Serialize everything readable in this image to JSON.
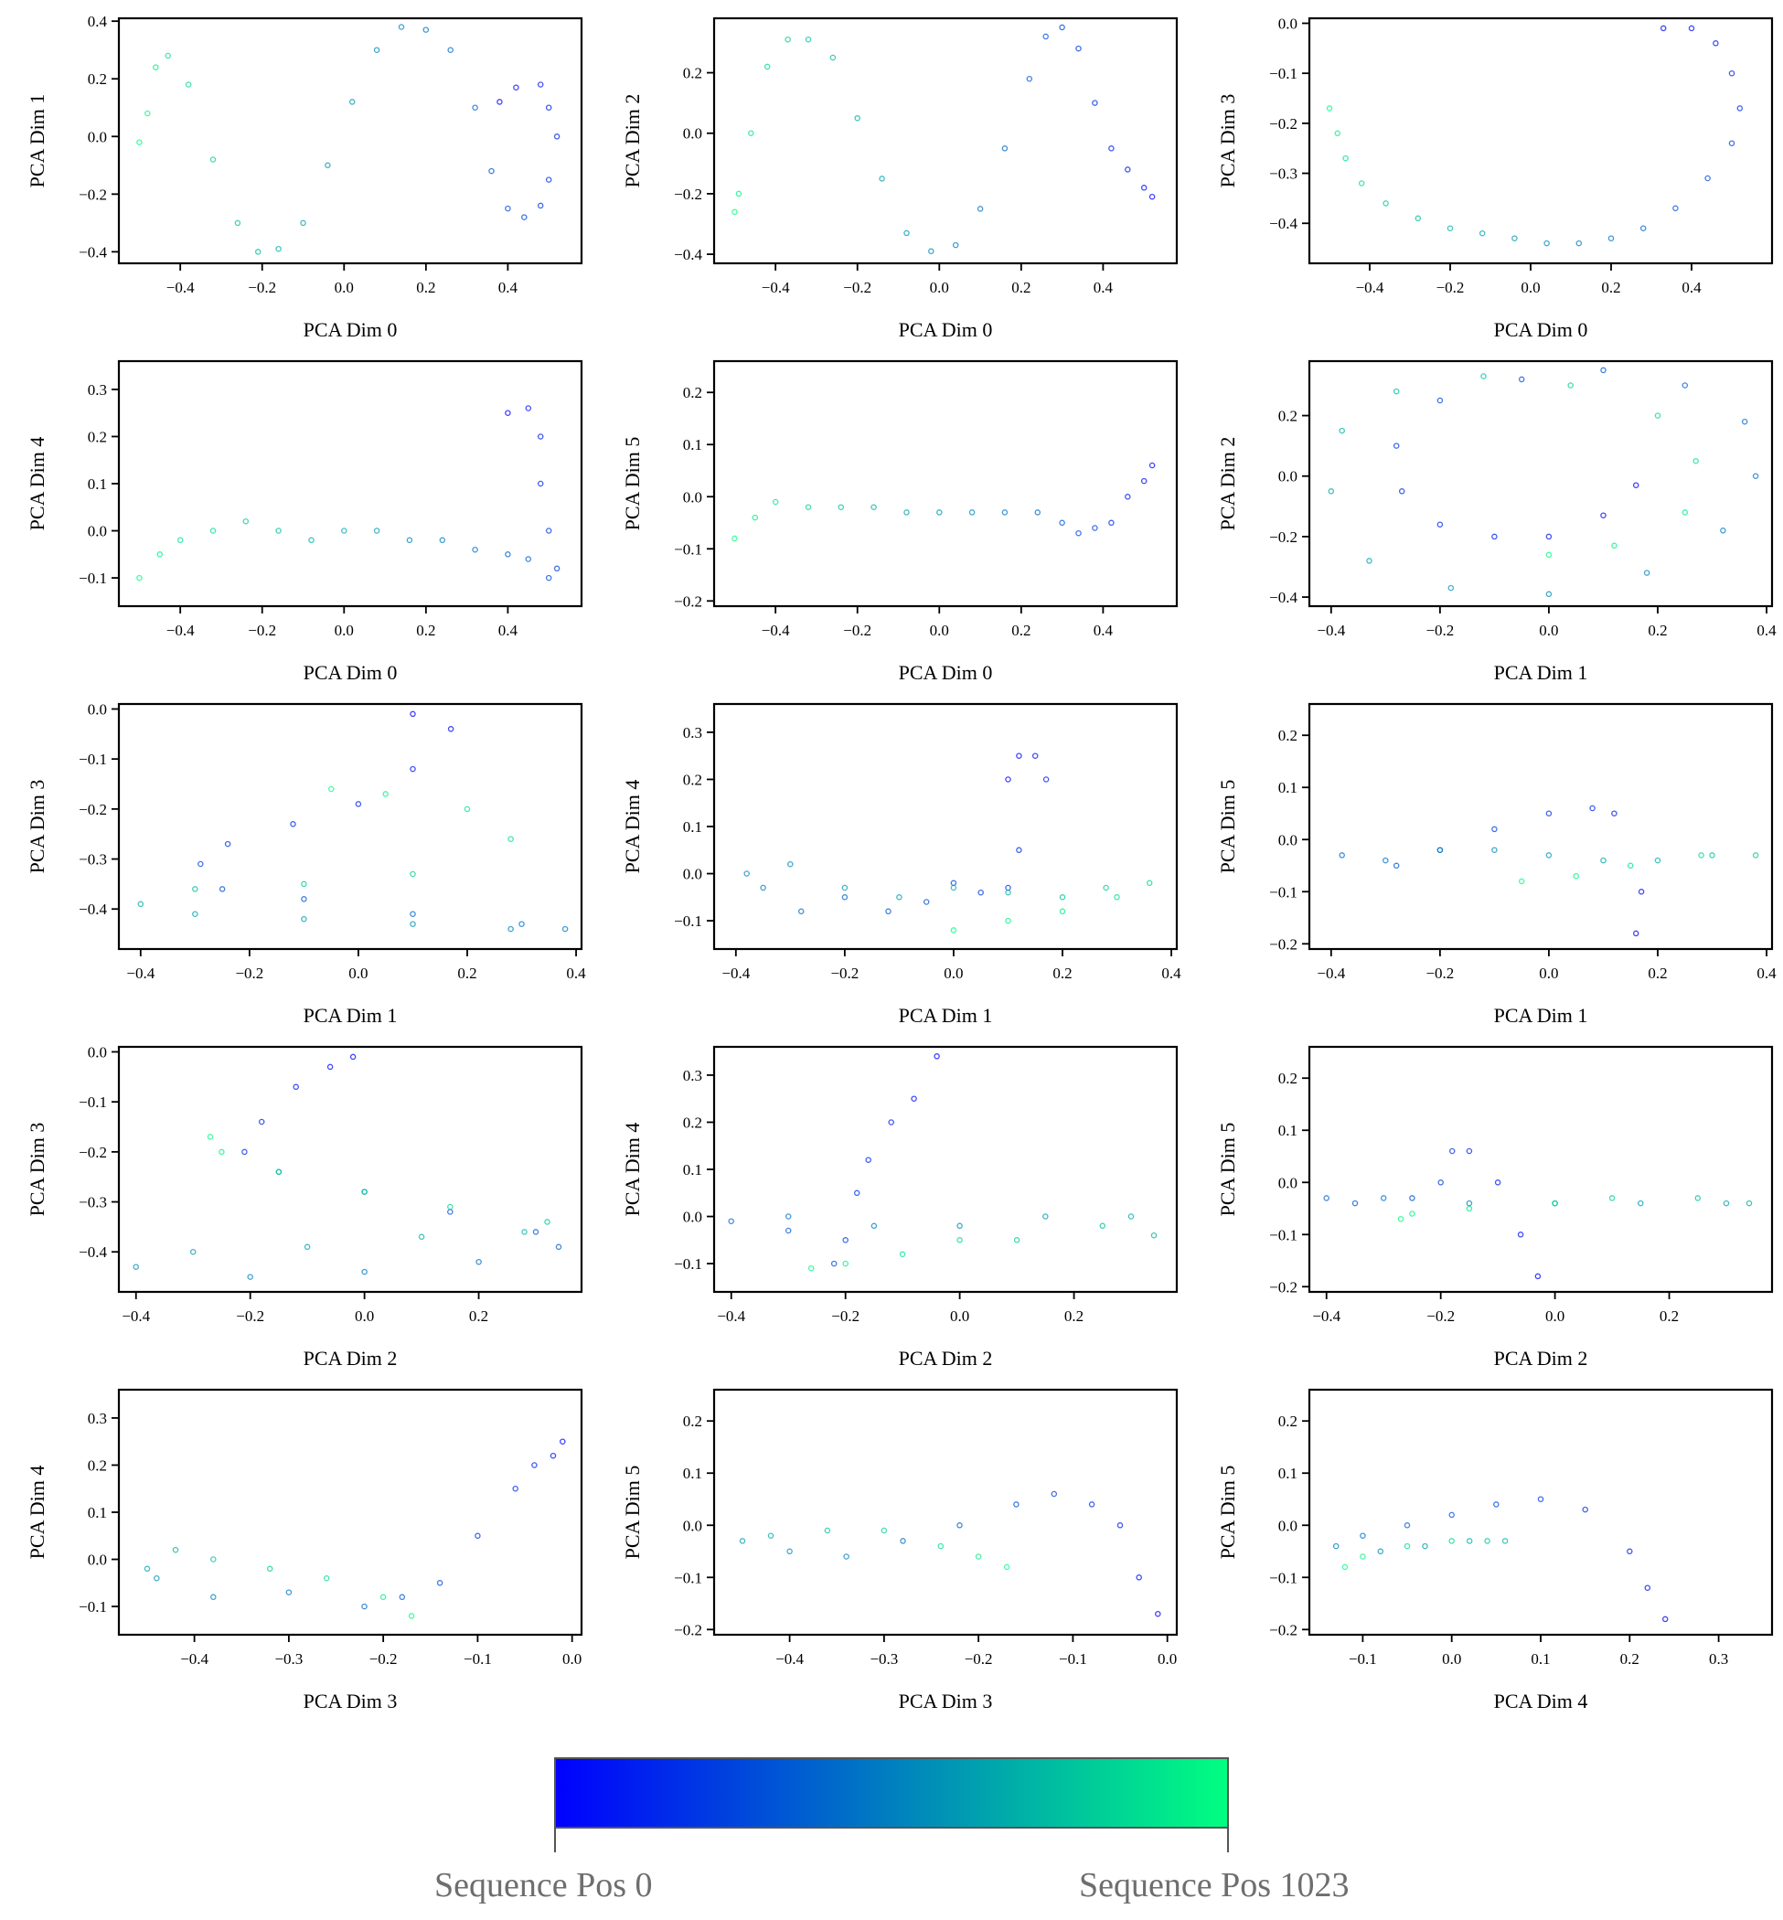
{
  "colorbar": {
    "start_color": "#0000ff",
    "end_color": "#00ff80",
    "left_label": "Sequence Pos 0",
    "right_label": "Sequence Pos 1023"
  },
  "chart_data": [
    {
      "type": "scatter",
      "xlabel": "PCA Dim 0",
      "ylabel": "PCA Dim 1",
      "xlim": [
        -0.55,
        0.58
      ],
      "ylim": [
        -0.44,
        0.41
      ],
      "xticks": [
        -0.4,
        -0.2,
        0.0,
        0.2,
        0.4
      ],
      "yticks": [
        -0.4,
        -0.2,
        0.0,
        0.2,
        0.4
      ],
      "x": [
        0.38,
        0.42,
        0.48,
        0.5,
        0.52,
        0.5,
        0.48,
        0.44,
        0.4,
        0.36,
        0.32,
        0.26,
        0.2,
        0.14,
        0.08,
        0.02,
        -0.04,
        -0.1,
        -0.16,
        -0.21,
        -0.26,
        -0.32,
        -0.38,
        -0.43,
        -0.46,
        -0.48,
        -0.5
      ],
      "y": [
        0.12,
        0.17,
        0.18,
        0.1,
        0.0,
        -0.15,
        -0.24,
        -0.28,
        -0.25,
        -0.12,
        0.1,
        0.3,
        0.37,
        0.38,
        0.3,
        0.12,
        -0.1,
        -0.3,
        -0.39,
        -0.4,
        -0.3,
        -0.08,
        0.18,
        0.28,
        0.24,
        0.08,
        -0.02
      ]
    },
    {
      "type": "scatter",
      "xlabel": "PCA Dim 0",
      "ylabel": "PCA Dim 2",
      "xlim": [
        -0.55,
        0.58
      ],
      "ylim": [
        -0.43,
        0.38
      ],
      "xticks": [
        -0.4,
        -0.2,
        0.0,
        0.2,
        0.4
      ],
      "yticks": [
        -0.4,
        -0.2,
        0.0,
        0.2
      ],
      "x": [
        0.52,
        0.5,
        0.46,
        0.42,
        0.38,
        0.34,
        0.3,
        0.26,
        0.22,
        0.16,
        0.1,
        0.04,
        -0.02,
        -0.08,
        -0.14,
        -0.2,
        -0.26,
        -0.32,
        -0.37,
        -0.42,
        -0.46,
        -0.49,
        -0.5
      ],
      "y": [
        -0.21,
        -0.18,
        -0.12,
        -0.05,
        0.1,
        0.28,
        0.35,
        0.32,
        0.18,
        -0.05,
        -0.25,
        -0.37,
        -0.39,
        -0.33,
        -0.15,
        0.05,
        0.25,
        0.31,
        0.31,
        0.22,
        0.0,
        -0.2,
        -0.26
      ]
    },
    {
      "type": "scatter",
      "xlabel": "PCA Dim 0",
      "ylabel": "PCA Dim 3",
      "xlim": [
        -0.55,
        0.6
      ],
      "ylim": [
        -0.48,
        0.01
      ],
      "xticks": [
        -0.4,
        -0.2,
        0.0,
        0.2,
        0.4
      ],
      "yticks": [
        -0.4,
        -0.3,
        -0.2,
        -0.1,
        0.0
      ],
      "x": [
        0.33,
        0.4,
        0.46,
        0.5,
        0.52,
        0.5,
        0.44,
        0.36,
        0.28,
        0.2,
        0.12,
        0.04,
        -0.04,
        -0.12,
        -0.2,
        -0.28,
        -0.36,
        -0.42,
        -0.46,
        -0.48,
        -0.5
      ],
      "y": [
        -0.01,
        -0.01,
        -0.04,
        -0.1,
        -0.17,
        -0.24,
        -0.31,
        -0.37,
        -0.41,
        -0.43,
        -0.44,
        -0.44,
        -0.43,
        -0.42,
        -0.41,
        -0.39,
        -0.36,
        -0.32,
        -0.27,
        -0.22,
        -0.17
      ]
    },
    {
      "type": "scatter",
      "xlabel": "PCA Dim 0",
      "ylabel": "PCA Dim 4",
      "xlim": [
        -0.55,
        0.58
      ],
      "ylim": [
        -0.16,
        0.36
      ],
      "xticks": [
        -0.4,
        -0.2,
        0.0,
        0.2,
        0.4
      ],
      "yticks": [
        -0.1,
        0.0,
        0.1,
        0.2,
        0.3
      ],
      "x": [
        0.4,
        0.45,
        0.48,
        0.48,
        0.5,
        0.52,
        0.5,
        0.45,
        0.4,
        0.32,
        0.24,
        0.16,
        0.08,
        0.0,
        -0.08,
        -0.16,
        -0.24,
        -0.32,
        -0.4,
        -0.45,
        -0.5
      ],
      "y": [
        0.25,
        0.26,
        0.2,
        0.1,
        0.0,
        -0.08,
        -0.1,
        -0.06,
        -0.05,
        -0.04,
        -0.02,
        -0.02,
        0.0,
        0.0,
        -0.02,
        0.0,
        0.02,
        0.0,
        -0.02,
        -0.05,
        -0.1
      ]
    },
    {
      "type": "scatter",
      "xlabel": "PCA Dim 0",
      "ylabel": "PCA Dim 5",
      "xlim": [
        -0.55,
        0.58
      ],
      "ylim": [
        -0.21,
        0.26
      ],
      "xticks": [
        -0.4,
        -0.2,
        0.0,
        0.2,
        0.4
      ],
      "yticks": [
        -0.2,
        -0.1,
        0.0,
        0.1,
        0.2
      ],
      "x": [
        0.52,
        0.5,
        0.46,
        0.42,
        0.38,
        0.34,
        0.3,
        0.24,
        0.16,
        0.08,
        0.0,
        -0.08,
        -0.16,
        -0.24,
        -0.32,
        -0.4,
        -0.45,
        -0.5
      ],
      "y": [
        0.06,
        0.03,
        0.0,
        -0.05,
        -0.06,
        -0.07,
        -0.05,
        -0.03,
        -0.03,
        -0.03,
        -0.03,
        -0.03,
        -0.02,
        -0.02,
        -0.02,
        -0.01,
        -0.04,
        -0.08
      ]
    },
    {
      "type": "scatter",
      "xlabel": "PCA Dim 1",
      "ylabel": "PCA Dim 2",
      "xlim": [
        -0.44,
        0.41
      ],
      "ylim": [
        -0.43,
        0.38
      ],
      "xticks": [
        -0.4,
        -0.2,
        0.0,
        0.2,
        0.4
      ],
      "yticks": [
        -0.4,
        -0.2,
        0.0,
        0.2
      ],
      "x": [
        0.16,
        0.1,
        0.0,
        -0.1,
        -0.2,
        -0.27,
        -0.28,
        -0.2,
        -0.05,
        0.1,
        0.25,
        0.36,
        0.38,
        0.32,
        0.18,
        0.0,
        -0.18,
        -0.33,
        -0.4,
        -0.38,
        -0.28,
        -0.12,
        0.04,
        0.2,
        0.27,
        0.25,
        0.12,
        0.0
      ],
      "y": [
        -0.03,
        -0.13,
        -0.2,
        -0.2,
        -0.16,
        -0.05,
        0.1,
        0.25,
        0.32,
        0.35,
        0.3,
        0.18,
        0.0,
        -0.18,
        -0.32,
        -0.39,
        -0.37,
        -0.28,
        -0.05,
        0.15,
        0.28,
        0.33,
        0.3,
        0.2,
        0.05,
        -0.12,
        -0.23,
        -0.26
      ]
    },
    {
      "type": "scatter",
      "xlabel": "PCA Dim 1",
      "ylabel": "PCA Dim 3",
      "xlim": [
        -0.44,
        0.41
      ],
      "ylim": [
        -0.48,
        0.01
      ],
      "xticks": [
        -0.4,
        -0.2,
        0.0,
        0.2,
        0.4
      ],
      "yticks": [
        -0.4,
        -0.3,
        -0.2,
        -0.1,
        0.0
      ],
      "x": [
        0.1,
        0.17,
        0.1,
        0.0,
        -0.12,
        -0.24,
        -0.29,
        -0.25,
        -0.1,
        0.1,
        0.3,
        0.38,
        0.28,
        0.1,
        -0.1,
        -0.3,
        -0.4,
        -0.3,
        -0.1,
        0.1,
        0.28,
        0.2,
        0.05,
        -0.05
      ],
      "y": [
        -0.01,
        -0.04,
        -0.12,
        -0.19,
        -0.23,
        -0.27,
        -0.31,
        -0.36,
        -0.38,
        -0.41,
        -0.43,
        -0.44,
        -0.44,
        -0.43,
        -0.42,
        -0.41,
        -0.39,
        -0.36,
        -0.35,
        -0.33,
        -0.26,
        -0.2,
        -0.17,
        -0.16
      ]
    },
    {
      "type": "scatter",
      "xlabel": "PCA Dim 1",
      "ylabel": "PCA Dim 4",
      "xlim": [
        -0.44,
        0.41
      ],
      "ylim": [
        -0.16,
        0.36
      ],
      "xticks": [
        -0.4,
        -0.2,
        0.0,
        0.2,
        0.4
      ],
      "yticks": [
        -0.1,
        0.0,
        0.1,
        0.2,
        0.3
      ],
      "x": [
        0.1,
        0.12,
        0.15,
        0.17,
        0.12,
        0.1,
        0.05,
        0.0,
        -0.05,
        -0.12,
        -0.2,
        -0.28,
        -0.35,
        -0.38,
        -0.3,
        -0.2,
        -0.1,
        0.0,
        0.1,
        0.2,
        0.28,
        0.36,
        0.3,
        0.2,
        0.1,
        0.0
      ],
      "y": [
        0.2,
        0.25,
        0.25,
        0.2,
        0.05,
        -0.03,
        -0.04,
        -0.02,
        -0.06,
        -0.08,
        -0.05,
        -0.08,
        -0.03,
        0.0,
        0.02,
        -0.03,
        -0.05,
        -0.03,
        -0.04,
        -0.05,
        -0.03,
        -0.02,
        -0.05,
        -0.08,
        -0.1,
        -0.12
      ]
    },
    {
      "type": "scatter",
      "xlabel": "PCA Dim 1",
      "ylabel": "PCA Dim 5",
      "xlim": [
        -0.44,
        0.41
      ],
      "ylim": [
        -0.21,
        0.26
      ],
      "xticks": [
        -0.4,
        -0.2,
        0.0,
        0.2,
        0.4
      ],
      "yticks": [
        -0.2,
        -0.1,
        0.0,
        0.1,
        0.2
      ],
      "x": [
        0.16,
        0.17,
        0.12,
        0.08,
        0.0,
        -0.1,
        -0.2,
        -0.28,
        -0.38,
        -0.3,
        -0.2,
        -0.1,
        0.0,
        0.1,
        0.2,
        0.3,
        0.38,
        0.28,
        0.15,
        0.05,
        -0.05
      ],
      "y": [
        -0.18,
        -0.1,
        0.05,
        0.06,
        0.05,
        0.02,
        -0.02,
        -0.05,
        -0.03,
        -0.04,
        -0.02,
        -0.02,
        -0.03,
        -0.04,
        -0.04,
        -0.03,
        -0.03,
        -0.03,
        -0.05,
        -0.07,
        -0.08
      ]
    },
    {
      "type": "scatter",
      "xlabel": "PCA Dim 2",
      "ylabel": "PCA Dim 3",
      "xlim": [
        -0.43,
        0.38
      ],
      "ylim": [
        -0.48,
        0.01
      ],
      "xticks": [
        -0.4,
        -0.2,
        0.0,
        0.2
      ],
      "yticks": [
        -0.4,
        -0.3,
        -0.2,
        -0.1,
        0.0
      ],
      "x": [
        -0.02,
        -0.06,
        -0.12,
        -0.18,
        -0.21,
        -0.15,
        0.0,
        0.15,
        0.3,
        0.34,
        0.2,
        0.0,
        -0.2,
        -0.4,
        -0.3,
        -0.1,
        0.1,
        0.28,
        0.32,
        0.15,
        0.0,
        -0.15,
        -0.25,
        -0.27
      ],
      "y": [
        -0.01,
        -0.03,
        -0.07,
        -0.14,
        -0.2,
        -0.24,
        -0.28,
        -0.32,
        -0.36,
        -0.39,
        -0.42,
        -0.44,
        -0.45,
        -0.43,
        -0.4,
        -0.39,
        -0.37,
        -0.36,
        -0.34,
        -0.31,
        -0.28,
        -0.24,
        -0.2,
        -0.17
      ]
    },
    {
      "type": "scatter",
      "xlabel": "PCA Dim 2",
      "ylabel": "PCA Dim 4",
      "xlim": [
        -0.43,
        0.38
      ],
      "ylim": [
        -0.16,
        0.36
      ],
      "xticks": [
        -0.4,
        -0.2,
        0.0,
        0.2
      ],
      "yticks": [
        -0.1,
        0.0,
        0.1,
        0.2,
        0.3
      ],
      "x": [
        -0.04,
        -0.08,
        -0.12,
        -0.16,
        -0.18,
        -0.2,
        -0.22,
        -0.3,
        -0.4,
        -0.3,
        -0.15,
        0.0,
        0.15,
        0.3,
        0.34,
        0.25,
        0.1,
        0.0,
        -0.1,
        -0.2,
        -0.26
      ],
      "y": [
        0.34,
        0.25,
        0.2,
        0.12,
        0.05,
        -0.05,
        -0.1,
        -0.03,
        -0.01,
        0.0,
        -0.02,
        -0.02,
        0.0,
        0.0,
        -0.04,
        -0.02,
        -0.05,
        -0.05,
        -0.08,
        -0.1,
        -0.11
      ]
    },
    {
      "type": "scatter",
      "xlabel": "PCA Dim 2",
      "ylabel": "PCA Dim 5",
      "xlim": [
        -0.43,
        0.38
      ],
      "ylim": [
        -0.21,
        0.26
      ],
      "xticks": [
        -0.4,
        -0.2,
        0.0,
        0.2
      ],
      "yticks": [
        -0.2,
        -0.1,
        0.0,
        0.1,
        0.2
      ],
      "x": [
        -0.03,
        -0.06,
        -0.1,
        -0.15,
        -0.18,
        -0.2,
        -0.25,
        -0.35,
        -0.4,
        -0.3,
        -0.15,
        0.0,
        0.15,
        0.3,
        0.34,
        0.25,
        0.1,
        0.0,
        -0.15,
        -0.25,
        -0.27
      ],
      "y": [
        -0.18,
        -0.1,
        0.0,
        0.06,
        0.06,
        0.0,
        -0.03,
        -0.04,
        -0.03,
        -0.03,
        -0.04,
        -0.04,
        -0.04,
        -0.04,
        -0.04,
        -0.03,
        -0.03,
        -0.04,
        -0.05,
        -0.06,
        -0.07
      ]
    },
    {
      "type": "scatter",
      "xlabel": "PCA Dim 3",
      "ylabel": "PCA Dim 4",
      "xlim": [
        -0.48,
        0.01
      ],
      "ylim": [
        -0.16,
        0.36
      ],
      "xticks": [
        -0.4,
        -0.3,
        -0.2,
        -0.1,
        0.0
      ],
      "yticks": [
        -0.1,
        0.0,
        0.1,
        0.2,
        0.3
      ],
      "x": [
        -0.01,
        -0.02,
        -0.04,
        -0.06,
        -0.1,
        -0.14,
        -0.18,
        -0.22,
        -0.3,
        -0.38,
        -0.44,
        -0.45,
        -0.42,
        -0.38,
        -0.32,
        -0.26,
        -0.2,
        -0.17
      ],
      "y": [
        0.25,
        0.22,
        0.2,
        0.15,
        0.05,
        -0.05,
        -0.08,
        -0.1,
        -0.07,
        -0.08,
        -0.04,
        -0.02,
        0.02,
        0.0,
        -0.02,
        -0.04,
        -0.08,
        -0.12
      ]
    },
    {
      "type": "scatter",
      "xlabel": "PCA Dim 3",
      "ylabel": "PCA Dim 5",
      "xlim": [
        -0.48,
        0.01
      ],
      "ylim": [
        -0.21,
        0.26
      ],
      "xticks": [
        -0.4,
        -0.3,
        -0.2,
        -0.1,
        0.0
      ],
      "yticks": [
        -0.2,
        -0.1,
        0.0,
        0.1,
        0.2
      ],
      "x": [
        -0.01,
        -0.03,
        -0.05,
        -0.08,
        -0.12,
        -0.16,
        -0.22,
        -0.28,
        -0.34,
        -0.4,
        -0.45,
        -0.42,
        -0.36,
        -0.3,
        -0.24,
        -0.2,
        -0.17
      ],
      "y": [
        -0.17,
        -0.1,
        0.0,
        0.04,
        0.06,
        0.04,
        0.0,
        -0.03,
        -0.06,
        -0.05,
        -0.03,
        -0.02,
        -0.01,
        -0.01,
        -0.04,
        -0.06,
        -0.08
      ]
    },
    {
      "type": "scatter",
      "xlabel": "PCA Dim 4",
      "ylabel": "PCA Dim 5",
      "xlim": [
        -0.16,
        0.36
      ],
      "ylim": [
        -0.21,
        0.26
      ],
      "xticks": [
        -0.1,
        0.0,
        0.1,
        0.2,
        0.3
      ],
      "yticks": [
        -0.2,
        -0.1,
        0.0,
        0.1,
        0.2
      ],
      "x": [
        0.24,
        0.22,
        0.2,
        0.15,
        0.1,
        0.05,
        0.0,
        -0.05,
        -0.1,
        -0.13,
        -0.08,
        -0.03,
        0.02,
        0.06,
        0.04,
        0.0,
        -0.05,
        -0.1,
        -0.12
      ],
      "y": [
        -0.18,
        -0.12,
        -0.05,
        0.03,
        0.05,
        0.04,
        0.02,
        0.0,
        -0.02,
        -0.04,
        -0.05,
        -0.04,
        -0.03,
        -0.03,
        -0.03,
        -0.03,
        -0.04,
        -0.06,
        -0.08
      ]
    }
  ]
}
